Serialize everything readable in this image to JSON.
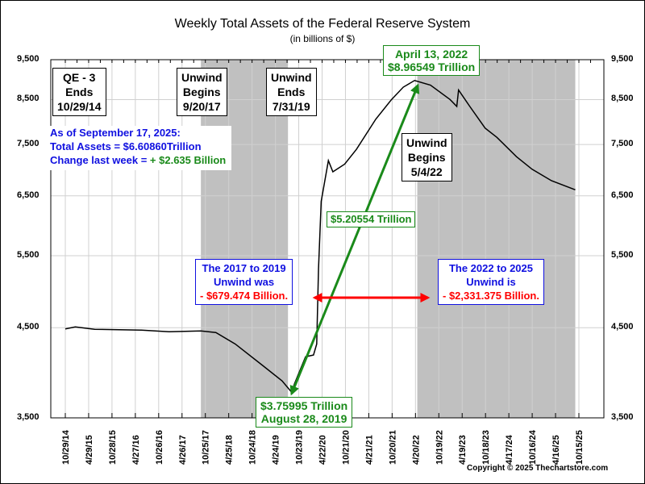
{
  "chart_data": {
    "type": "line",
    "title": "Weekly Total Assets of the Federal Reserve System",
    "subtitle": "(in billions of $)",
    "y_scale": "log",
    "ylim": [
      3500,
      9500
    ],
    "yticks": [
      "3,500",
      "4,500",
      "5,500",
      "6,500",
      "7,500",
      "8,500",
      "9,500"
    ],
    "ytick_values": [
      3500,
      4500,
      5500,
      6500,
      7500,
      8500,
      9500
    ],
    "xtick_labels": [
      "10/29/14",
      "4/29/15",
      "10/28/15",
      "4/27/16",
      "10/26/16",
      "4/26/17",
      "10/25/17",
      "4/25/18",
      "10/24/18",
      "4/24/19",
      "10/23/19",
      "4/22/20",
      "10/21/20",
      "4/21/21",
      "10/20/21",
      "4/20/22",
      "10/19/22",
      "4/19/23",
      "10/18/23",
      "4/17/24",
      "10/16/24",
      "4/16/25",
      "10/15/25"
    ],
    "grid": true,
    "series": [
      {
        "x": [
          "2014-10-29",
          "2015-01-15",
          "2015-06-15",
          "2016-06-15",
          "2017-01-15",
          "2017-09-20",
          "2018-01-15",
          "2018-06-15",
          "2019-01-15",
          "2019-06-15",
          "2019-08-28",
          "2019-09-20",
          "2019-12-15",
          "2020-02-15",
          "2020-03-11",
          "2020-03-25",
          "2020-04-15",
          "2020-06-10",
          "2020-07-15",
          "2020-10-15",
          "2021-01-15",
          "2021-06-15",
          "2021-10-15",
          "2022-01-15",
          "2022-04-13",
          "2022-08-15",
          "2023-01-15",
          "2023-03-08",
          "2023-03-22",
          "2023-06-15",
          "2023-10-15",
          "2024-01-15",
          "2024-06-15",
          "2024-10-15",
          "2025-03-15",
          "2025-09-17"
        ],
        "values": [
          4485,
          4510,
          4480,
          4470,
          4450,
          4460,
          4440,
          4300,
          4050,
          3880,
          3760,
          3850,
          4150,
          4170,
          4300,
          5300,
          6400,
          7170,
          6950,
          7100,
          7400,
          8050,
          8500,
          8800,
          8965,
          8850,
          8500,
          8340,
          8730,
          8350,
          7850,
          7650,
          7250,
          7000,
          6780,
          6609
        ]
      }
    ],
    "shaded_periods": [
      [
        "2017-09-20",
        "2019-07-31"
      ],
      [
        "2022-05-04",
        "2025-09-17"
      ]
    ],
    "annotations": {
      "qe3": [
        "QE - 3",
        "Ends",
        "10/29/14"
      ],
      "unwind_begins_2017": [
        "Unwind",
        "Begins",
        "9/20/17"
      ],
      "unwind_ends_2019": [
        "Unwind",
        "Ends",
        "7/31/19"
      ],
      "unwind_begins_2022": [
        "Unwind",
        "Begins",
        "5/4/22"
      ],
      "as_of": "As of September 17, 2025:",
      "total_assets": "Total Assets =  $6.60860Trillion",
      "change_label": "Change last week = ",
      "change_value": "+ $2.635 Billion",
      "peak": [
        "April 13, 2022",
        "$8.96549 Trillion"
      ],
      "trough": [
        "$3.75995 Trillion",
        "August 28, 2019"
      ],
      "rise": "$5.20554 Trillion",
      "unwind_2017": [
        "The 2017 to 2019",
        "Unwind was",
        "- $679.474 Billion."
      ],
      "unwind_2022": [
        "The 2022 to 2025",
        "Unwind is",
        "- $2,331.375 Billion."
      ]
    },
    "colors": {
      "line": "#000000",
      "shade": "#c0c0c0",
      "green": "#1a8a1a",
      "blue": "#1010e0",
      "red": "#ff0000"
    }
  },
  "copyright": "Copyright © 2025 Thechartstore.com"
}
